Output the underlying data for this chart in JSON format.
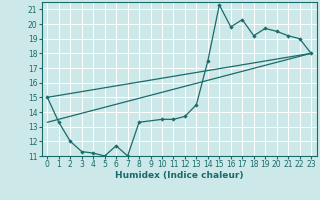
{
  "xlabel": "Humidex (Indice chaleur)",
  "bg_color": "#cce8e8",
  "grid_color": "#ffffff",
  "line_color": "#1a6b6b",
  "xlim": [
    -0.5,
    23.5
  ],
  "ylim": [
    11,
    21.5
  ],
  "yticks": [
    11,
    12,
    13,
    14,
    15,
    16,
    17,
    18,
    19,
    20,
    21
  ],
  "xticks": [
    0,
    1,
    2,
    3,
    4,
    5,
    6,
    7,
    8,
    9,
    10,
    11,
    12,
    13,
    14,
    15,
    16,
    17,
    18,
    19,
    20,
    21,
    22,
    23
  ],
  "series1_x": [
    0,
    1,
    2,
    3,
    4,
    5,
    6,
    7,
    8,
    10,
    11,
    12,
    13,
    14,
    15,
    16,
    17,
    18,
    19,
    20,
    21,
    22,
    23
  ],
  "series1_y": [
    15.0,
    13.3,
    12.0,
    11.3,
    11.2,
    11.0,
    11.7,
    11.0,
    13.3,
    13.5,
    13.5,
    13.7,
    14.5,
    17.5,
    21.3,
    19.8,
    20.3,
    19.2,
    19.7,
    19.5,
    19.2,
    19.0,
    18.0
  ],
  "line1_x": [
    0,
    23
  ],
  "line1_y": [
    15.0,
    18.0
  ],
  "line2_x": [
    0,
    23
  ],
  "line2_y": [
    13.3,
    18.0
  ]
}
